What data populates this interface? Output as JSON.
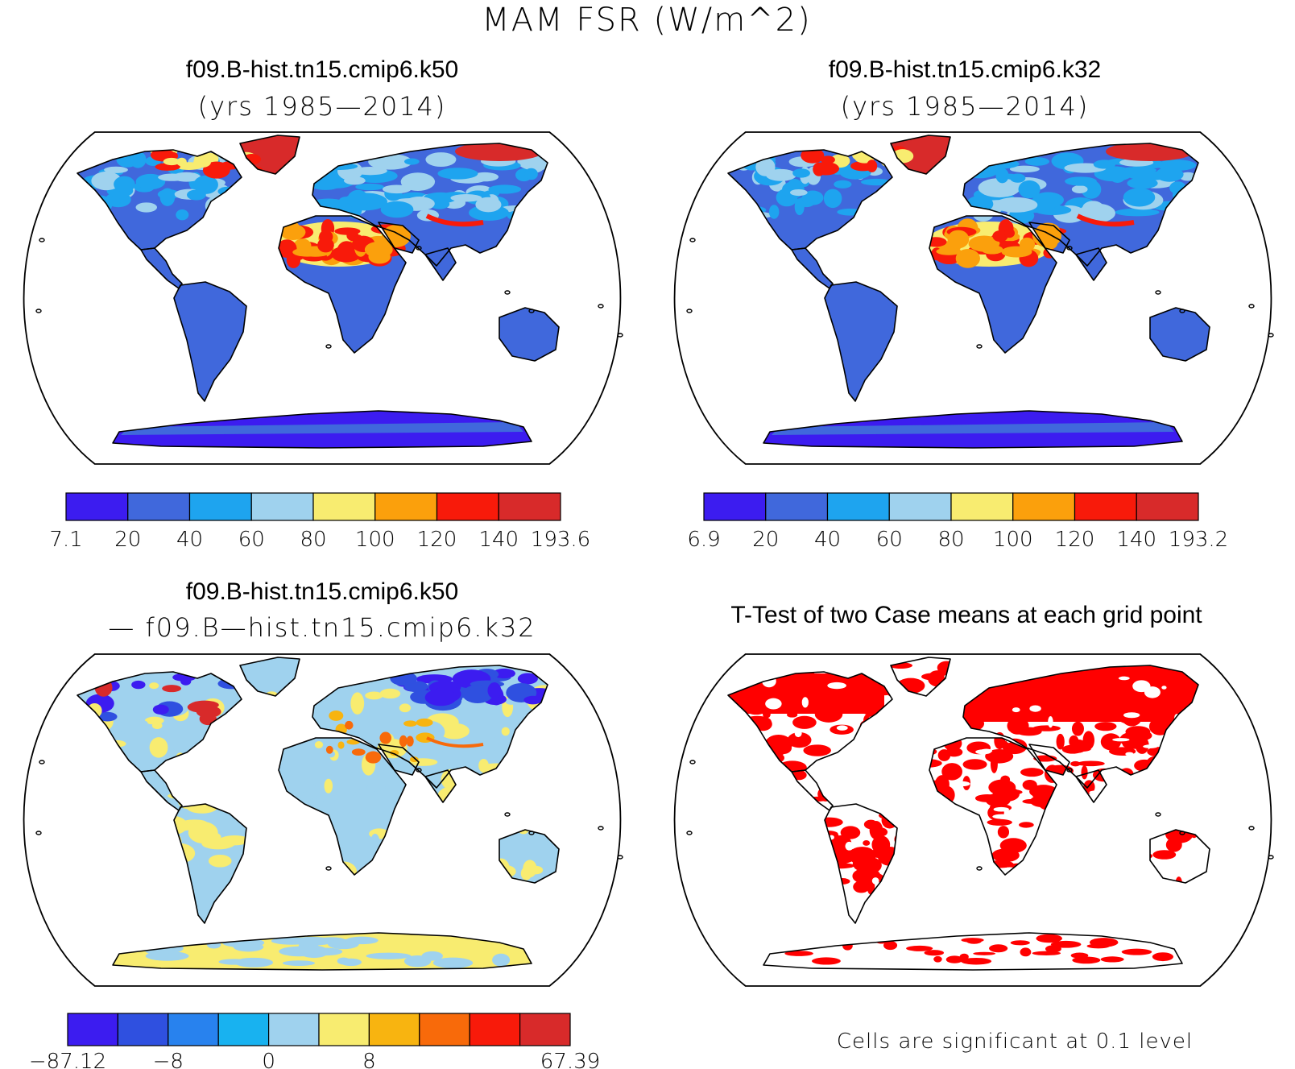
{
  "title": "MAM FSR (W/m^2)",
  "panels": [
    {
      "id": "case1",
      "title_line1": "f09.B-hist.tn15.cmip6.k50",
      "title_line2": "(yrs 1985—2014)",
      "colorbar": {
        "colors": [
          "#3c1cf0",
          "#4068dc",
          "#1ea4ef",
          "#9fd2ee",
          "#f8ec70",
          "#fba00c",
          "#f81a0a",
          "#d82a2a"
        ],
        "labels": [
          "7.1",
          "20",
          "40",
          "60",
          "80",
          "100",
          "120",
          "140",
          "193.6"
        ]
      }
    },
    {
      "id": "case2",
      "title_line1": "f09.B-hist.tn15.cmip6.k32",
      "title_line2": "(yrs 1985—2014)",
      "colorbar": {
        "colors": [
          "#3c1cf0",
          "#4068dc",
          "#1ea4ef",
          "#9fd2ee",
          "#f8ec70",
          "#fba00c",
          "#f81a0a",
          "#d82a2a"
        ],
        "labels": [
          "6.9",
          "20",
          "40",
          "60",
          "80",
          "100",
          "120",
          "140",
          "193.2"
        ]
      }
    },
    {
      "id": "diff",
      "title_line1": "f09.B-hist.tn15.cmip6.k50",
      "title_line2": "— f09.B—hist.tn15.cmip6.k32",
      "colorbar": {
        "colors": [
          "#3c1cf0",
          "#2f50e0",
          "#2882ee",
          "#18b2f0",
          "#9fd2ee",
          "#f8ec70",
          "#f8b410",
          "#f86a0a",
          "#f81a0a",
          "#d82a2a"
        ],
        "labels": [
          "−87.12",
          "",
          "−8",
          "",
          "0",
          "",
          "8",
          "",
          "",
          "67.39"
        ],
        "label_boundaries": [
          0,
          2,
          4,
          6,
          10
        ]
      }
    },
    {
      "id": "ttest",
      "title_line1": "T-Test of two Case means at each grid point",
      "note": "Cells are significant at 0.1 level"
    }
  ],
  "legend": {
    "land_fill_case": "#4068dc",
    "land_fill_diff": "#9fd2ee",
    "significant_color": "#ff0000"
  }
}
